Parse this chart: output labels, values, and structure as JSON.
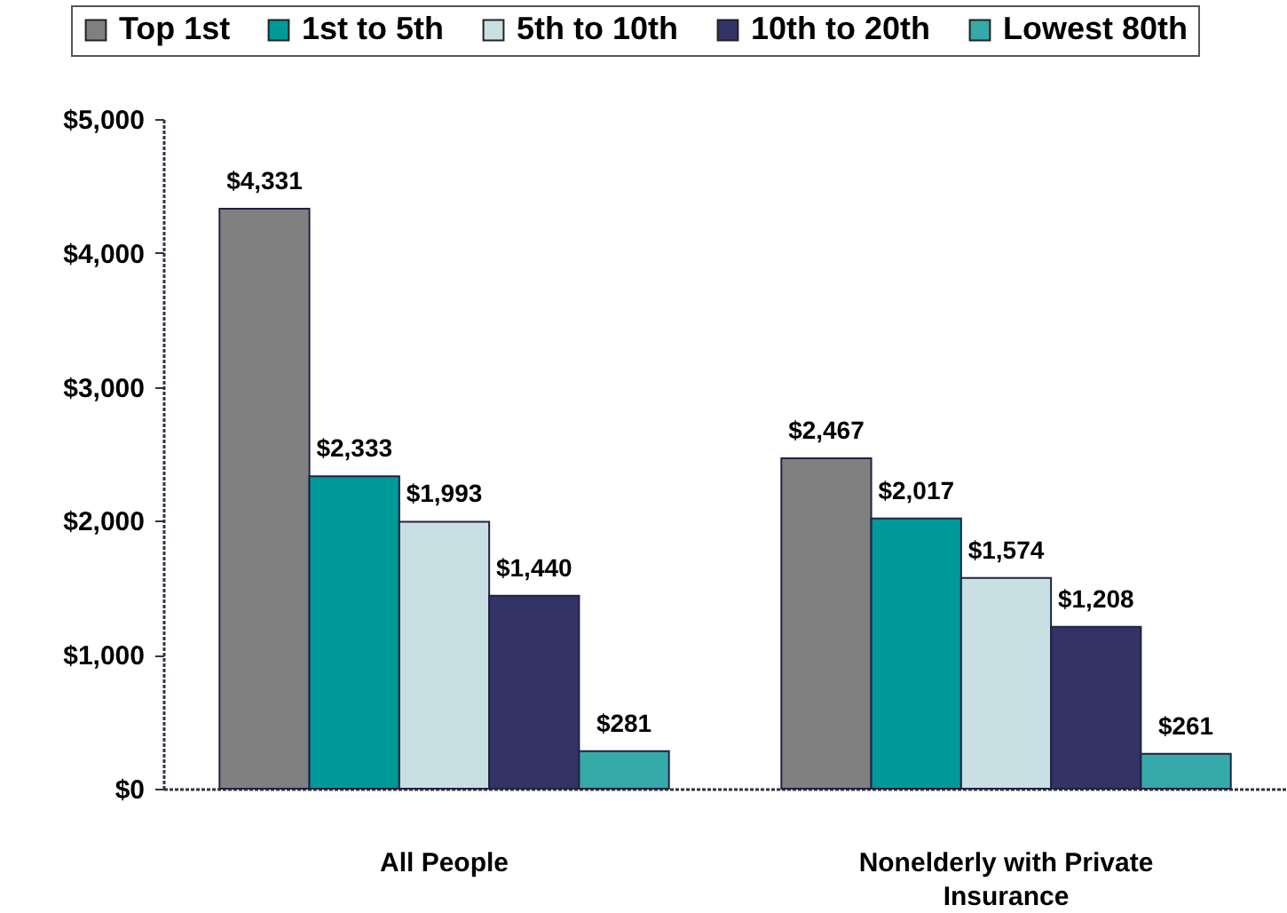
{
  "chart_data": {
    "type": "bar",
    "categories": [
      "All People",
      "Nonelderly with Private Insurance"
    ],
    "series": [
      {
        "name": "Top 1st",
        "color": "#808080",
        "values": [
          4331,
          2467
        ],
        "value_labels": [
          "$4,331",
          "$2,467"
        ]
      },
      {
        "name": "1st to 5th",
        "color": "#009999",
        "values": [
          2333,
          2017
        ],
        "value_labels": [
          "$2,333",
          "$2,017"
        ]
      },
      {
        "name": "5th to 10th",
        "color": "#c9e0e2",
        "values": [
          1993,
          1574
        ],
        "value_labels": [
          "$1,993",
          "$1,574"
        ]
      },
      {
        "name": "10th to 20th",
        "color": "#333366",
        "values": [
          1440,
          1208
        ],
        "value_labels": [
          "$1,440",
          "$1,208"
        ]
      },
      {
        "name": "Lowest 80th",
        "color": "#36a9a9",
        "values": [
          281,
          261
        ],
        "value_labels": [
          "$281",
          "$261"
        ]
      }
    ],
    "ylim": [
      0,
      5000
    ],
    "yticks": [
      {
        "value": 0,
        "label": "$0"
      },
      {
        "value": 1000,
        "label": "$1,000"
      },
      {
        "value": 2000,
        "label": "$2,000"
      },
      {
        "value": 3000,
        "label": "$3,000"
      },
      {
        "value": 4000,
        "label": "$4,000"
      },
      {
        "value": 5000,
        "label": "$5,000"
      }
    ],
    "grid": false,
    "legend": "top"
  }
}
